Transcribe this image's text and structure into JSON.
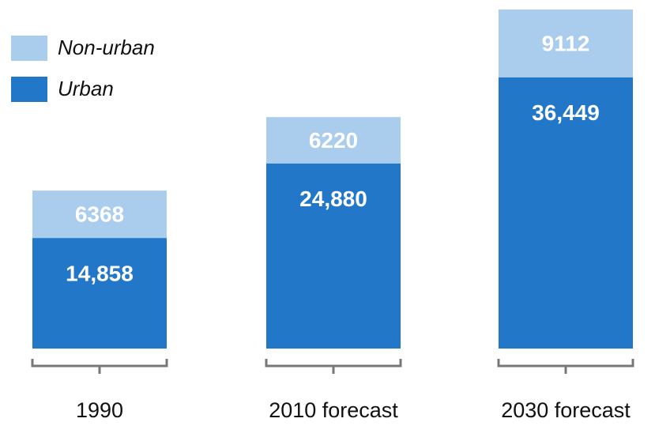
{
  "chart_data": {
    "type": "stacked-bar",
    "categories": [
      "1990",
      "2010 forecast",
      "2030 forecast"
    ],
    "series": [
      {
        "name": "Urban",
        "color": "#2277c8",
        "values": [
          14858,
          24880,
          36449
        ],
        "value_labels": [
          "14,858",
          "24,880",
          "36,449"
        ]
      },
      {
        "name": "Non-urban",
        "color": "#aacdee",
        "values": [
          6368,
          6220,
          9112
        ]
      }
    ]
  }
}
